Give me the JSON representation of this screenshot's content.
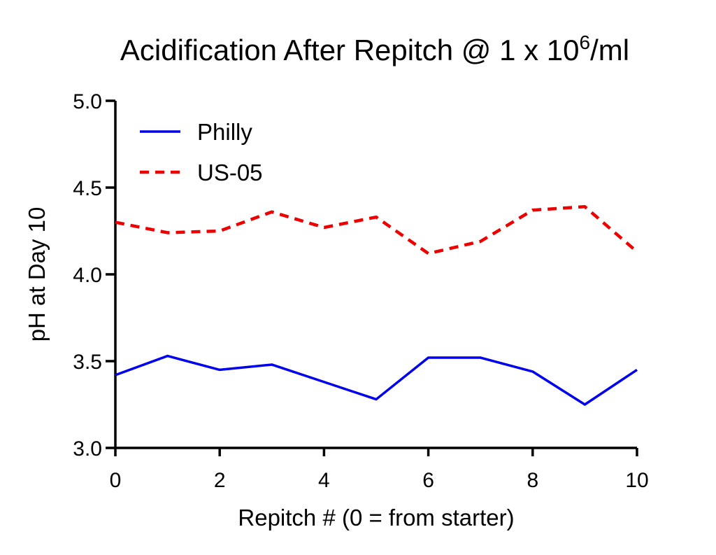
{
  "chart_data": {
    "type": "line",
    "title": {
      "main": "Acidification After Repitch @ 1 x 10",
      "superscript": "6",
      "suffix": "/ml"
    },
    "xlabel": "Repitch # (0 = from starter)",
    "ylabel": "pH at Day 10",
    "xlim": [
      0,
      10
    ],
    "ylim": [
      3.0,
      5.0
    ],
    "x_ticks": [
      "0",
      "2",
      "4",
      "6",
      "8",
      "10"
    ],
    "y_ticks": [
      "3.0",
      "3.5",
      "4.0",
      "4.5",
      "5.0"
    ],
    "grid": false,
    "legend_position": "top-left",
    "x": [
      0,
      1,
      2,
      3,
      4,
      5,
      6,
      7,
      8,
      9,
      10
    ],
    "series": [
      {
        "name": "Philly",
        "color": "#0000ee",
        "dash": "solid",
        "values": [
          3.42,
          3.53,
          3.45,
          3.48,
          3.38,
          3.28,
          3.52,
          3.52,
          3.44,
          3.25,
          3.45
        ]
      },
      {
        "name": "US-05",
        "color": "#ee0000",
        "dash": "dashed",
        "values": [
          4.3,
          4.24,
          4.25,
          4.36,
          4.27,
          4.33,
          4.12,
          4.19,
          4.37,
          4.39,
          4.13
        ]
      }
    ]
  }
}
